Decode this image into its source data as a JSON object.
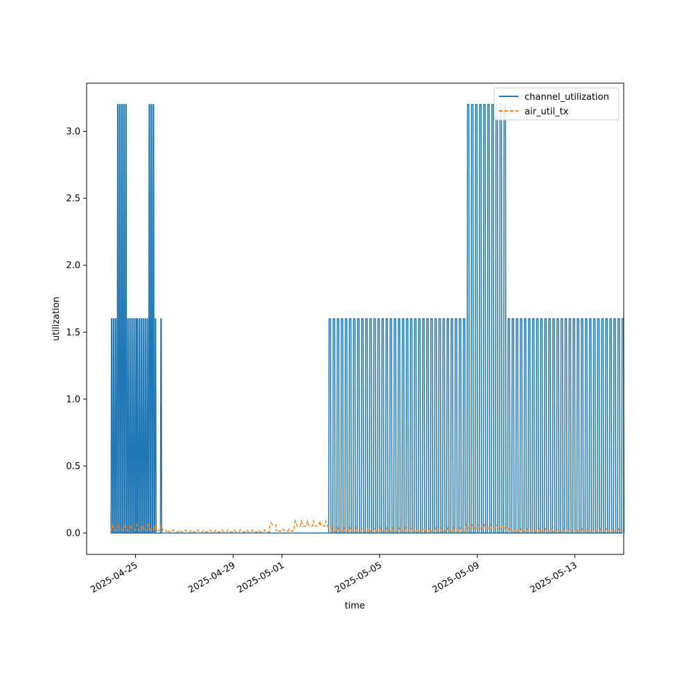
{
  "chart_data": {
    "type": "line",
    "xlabel": "time",
    "ylabel": "utilization",
    "xlim": [
      "2025-04-23T00:00",
      "2025-05-15T00:00"
    ],
    "ylim": [
      -0.16,
      3.36
    ],
    "x_ticks": [
      "2025-04-25",
      "2025-04-29",
      "2025-05-01",
      "2025-05-05",
      "2025-05-09",
      "2025-05-13"
    ],
    "y_ticks": [
      "0.0",
      "0.5",
      "1.0",
      "1.5",
      "2.0",
      "2.5",
      "3.0"
    ],
    "y_tick_values": [
      0.0,
      0.5,
      1.0,
      1.5,
      2.0,
      2.5,
      3.0
    ],
    "legend_position": "upper right",
    "grid": false,
    "series": [
      {
        "name": "channel_utilization",
        "color": "#1f77b4",
        "style": "solid",
        "spikes": [
          {
            "start": "2025-04-24T00:00",
            "end": "2025-04-25T00:10",
            "period_hours": 2.0,
            "peak": 1.6,
            "high": [
              {
                "start": "2025-04-24T06:00",
                "end": "2025-04-24T14:00",
                "peak": 3.2
              }
            ]
          },
          {
            "start": "2025-04-25T01:00",
            "end": "2025-04-25T20:00",
            "period_hours": 2.0,
            "peak": 1.6,
            "high": [
              {
                "start": "2025-04-25T13:00",
                "end": "2025-04-25T18:00",
                "peak": 3.2
              }
            ]
          },
          {
            "start": "2025-04-26T00:30",
            "end": "2025-04-26T01:30",
            "period_hours": 2.0,
            "peak": 1.6,
            "high": []
          },
          {
            "start": "2025-05-02T22:00",
            "end": "2025-05-14T23:00",
            "period_hours": 4.0,
            "peak": 1.6,
            "high": [
              {
                "start": "2025-05-08T14:00",
                "end": "2025-05-10T04:00",
                "peak": 3.2
              }
            ]
          }
        ],
        "baseline": 0.0
      },
      {
        "name": "air_util_tx",
        "color": "#ff7f0e",
        "style": "dashed",
        "segments": [
          {
            "start": "2025-04-24T00:00",
            "end": "2025-04-26T06:00",
            "base": 0.02,
            "amp": 0.04
          },
          {
            "start": "2025-04-26T06:00",
            "end": "2025-04-30T12:00",
            "base": 0.008,
            "amp": 0.015
          },
          {
            "start": "2025-04-30T12:00",
            "end": "2025-04-30T18:00",
            "base": 0.06,
            "amp": 0.015
          },
          {
            "start": "2025-04-30T18:00",
            "end": "2025-05-01T12:00",
            "base": 0.015,
            "amp": 0.015
          },
          {
            "start": "2025-05-01T12:00",
            "end": "2025-05-03T00:00",
            "base": 0.05,
            "amp": 0.04
          },
          {
            "start": "2025-05-03T00:00",
            "end": "2025-05-08T12:00",
            "base": 0.012,
            "amp": 0.025
          },
          {
            "start": "2025-05-08T12:00",
            "end": "2025-05-10T06:00",
            "base": 0.035,
            "amp": 0.025
          },
          {
            "start": "2025-05-10T06:00",
            "end": "2025-05-14T23:00",
            "base": 0.01,
            "amp": 0.02
          }
        ]
      }
    ]
  }
}
